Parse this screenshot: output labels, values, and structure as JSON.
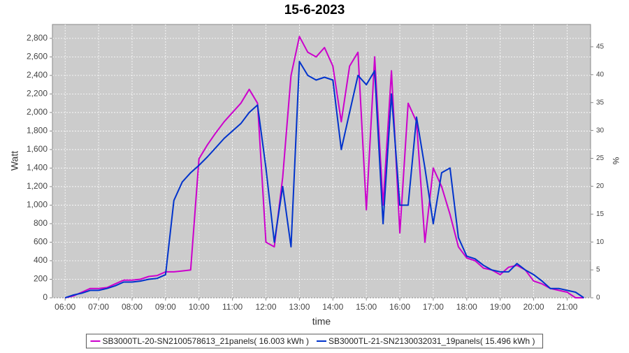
{
  "chart_data": {
    "type": "line",
    "title": "15-6-2023",
    "x_label": "time",
    "y_label": "Watt",
    "y2_label": "%",
    "x": [
      6,
      6.25,
      6.5,
      6.75,
      7,
      7.25,
      7.5,
      7.75,
      8,
      8.25,
      8.5,
      8.75,
      9,
      9.25,
      9.5,
      9.75,
      10,
      10.25,
      10.5,
      10.75,
      11,
      11.25,
      11.5,
      11.75,
      12,
      12.25,
      12.5,
      12.75,
      13,
      13.25,
      13.5,
      13.75,
      14,
      14.25,
      14.5,
      14.75,
      15,
      15.25,
      15.5,
      15.75,
      16,
      16.25,
      16.5,
      16.75,
      17,
      17.25,
      17.5,
      17.75,
      18,
      18.25,
      18.5,
      18.75,
      19,
      19.25,
      19.5,
      19.75,
      20,
      20.25,
      20.5,
      20.75,
      21,
      21.25,
      21.5
    ],
    "series": [
      {
        "name": "SB3000TL-20-SN2100578613_21panels( 16.003 kWh )",
        "color": "#cc00cc",
        "values": [
          0,
          20,
          60,
          100,
          100,
          110,
          150,
          190,
          190,
          200,
          230,
          240,
          280,
          280,
          290,
          300,
          1500,
          1650,
          1780,
          1900,
          2000,
          2100,
          2250,
          2100,
          600,
          550,
          1300,
          2400,
          2820,
          2650,
          2600,
          2700,
          2500,
          1900,
          2500,
          2650,
          950,
          2600,
          1000,
          2450,
          700,
          2100,
          1900,
          600,
          1400,
          1200,
          900,
          550,
          430,
          400,
          320,
          300,
          250,
          330,
          350,
          300,
          180,
          150,
          100,
          80,
          60,
          0,
          0
        ]
      },
      {
        "name": "SB3000TL-21-SN2130032031_19panels( 15.496 kWh )",
        "color": "#0033cc",
        "values": [
          0,
          30,
          50,
          80,
          80,
          100,
          130,
          170,
          170,
          180,
          200,
          210,
          250,
          1050,
          1250,
          1350,
          1430,
          1520,
          1620,
          1720,
          1800,
          1880,
          2000,
          2080,
          1400,
          600,
          1200,
          550,
          2550,
          2400,
          2350,
          2380,
          2350,
          1600,
          2000,
          2400,
          2300,
          2450,
          800,
          2200,
          1000,
          1000,
          1950,
          1400,
          800,
          1350,
          1400,
          650,
          450,
          420,
          350,
          300,
          280,
          280,
          370,
          300,
          250,
          180,
          100,
          100,
          80,
          60,
          0
        ]
      }
    ],
    "xlim": [
      5.62,
      21.7
    ],
    "xticks": [
      {
        "value": 6,
        "label": "06:00"
      },
      {
        "value": 7,
        "label": "07:00"
      },
      {
        "value": 8,
        "label": "08:00"
      },
      {
        "value": 9,
        "label": "09:00"
      },
      {
        "value": 10,
        "label": "10:00"
      },
      {
        "value": 11,
        "label": "11:00"
      },
      {
        "value": 12,
        "label": "12:00"
      },
      {
        "value": 13,
        "label": "13:00"
      },
      {
        "value": 14,
        "label": "14:00"
      },
      {
        "value": 15,
        "label": "15:00"
      },
      {
        "value": 16,
        "label": "16:00"
      },
      {
        "value": 17,
        "label": "17:00"
      },
      {
        "value": 18,
        "label": "18:00"
      },
      {
        "value": 19,
        "label": "19:00"
      },
      {
        "value": 20,
        "label": "20:00"
      },
      {
        "value": 21,
        "label": "21:00"
      }
    ],
    "ylim": [
      0,
      2950
    ],
    "yticks": [
      0,
      200,
      400,
      600,
      800,
      {
        "value": 1000,
        "label": "1,000"
      },
      {
        "value": 1200,
        "label": "1,200"
      },
      {
        "value": 1400,
        "label": "1,400"
      },
      {
        "value": 1600,
        "label": "1,600"
      },
      {
        "value": 1800,
        "label": "1,800"
      },
      {
        "value": 2000,
        "label": "2,000"
      },
      {
        "value": 2200,
        "label": "2,200"
      },
      {
        "value": 2400,
        "label": "2,400"
      },
      {
        "value": 2600,
        "label": "2,600"
      },
      {
        "value": 2800,
        "label": "2,800"
      }
    ],
    "y2lim": [
      0,
      49
    ],
    "y2ticks": [
      0,
      5,
      10,
      15,
      20,
      25,
      30,
      35,
      40,
      45
    ],
    "grid": true,
    "legend": "bottom",
    "background": "#cccccc"
  }
}
